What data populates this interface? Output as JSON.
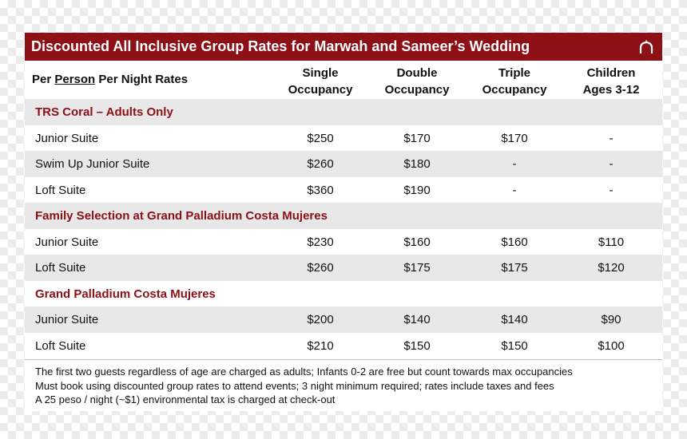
{
  "title": "Discounted All Inclusive Group Rates for Marwah and Sameer’s Wedding",
  "header": {
    "rates_prefix": "Per ",
    "rates_underlined": "Person",
    "rates_suffix": " Per Night Rates",
    "columns": [
      {
        "line1": "Single",
        "line2": "Occupancy"
      },
      {
        "line1": "Double",
        "line2": "Occupancy"
      },
      {
        "line1": "Triple",
        "line2": "Occupancy"
      },
      {
        "line1": "Children",
        "line2": "Ages 3-12"
      }
    ]
  },
  "sections": [
    {
      "name": "TRS Coral – Adults Only",
      "rows": [
        {
          "name": "Junior Suite",
          "single": "$250",
          "double": "$170",
          "triple": "$170",
          "children": "-"
        },
        {
          "name": "Swim Up Junior Suite",
          "single": "$260",
          "double": "$180",
          "triple": "-",
          "children": "-"
        },
        {
          "name": "Loft Suite",
          "single": "$360",
          "double": "$190",
          "triple": "-",
          "children": "-"
        }
      ]
    },
    {
      "name": "Family Selection at Grand Palladium Costa Mujeres",
      "rows": [
        {
          "name": "Junior Suite",
          "single": "$230",
          "double": "$160",
          "triple": "$160",
          "children": "$110"
        },
        {
          "name": "Loft Suite",
          "single": "$260",
          "double": "$175",
          "triple": "$175",
          "children": "$120"
        }
      ]
    },
    {
      "name": "Grand Palladium Costa Mujeres",
      "rows": [
        {
          "name": "Junior Suite",
          "single": "$200",
          "double": "$140",
          "triple": "$140",
          "children": "$90"
        },
        {
          "name": "Loft Suite",
          "single": "$210",
          "double": "$150",
          "triple": "$150",
          "children": "$100"
        }
      ]
    }
  ],
  "notes": [
    "The first two guests regardless of age are charged as adults; Infants 0-2 are free but count towards max occupancies",
    "Must book using discounted group rates to attend events; 3 night minimum required; rates include taxes and fees",
    "A 25 peso / night (~$1) environmental tax is charged at check-out"
  ],
  "icons": {
    "title_icon": "arch-icon"
  },
  "colors": {
    "accent": "#8c1016",
    "shade": "#e8e8e8"
  }
}
